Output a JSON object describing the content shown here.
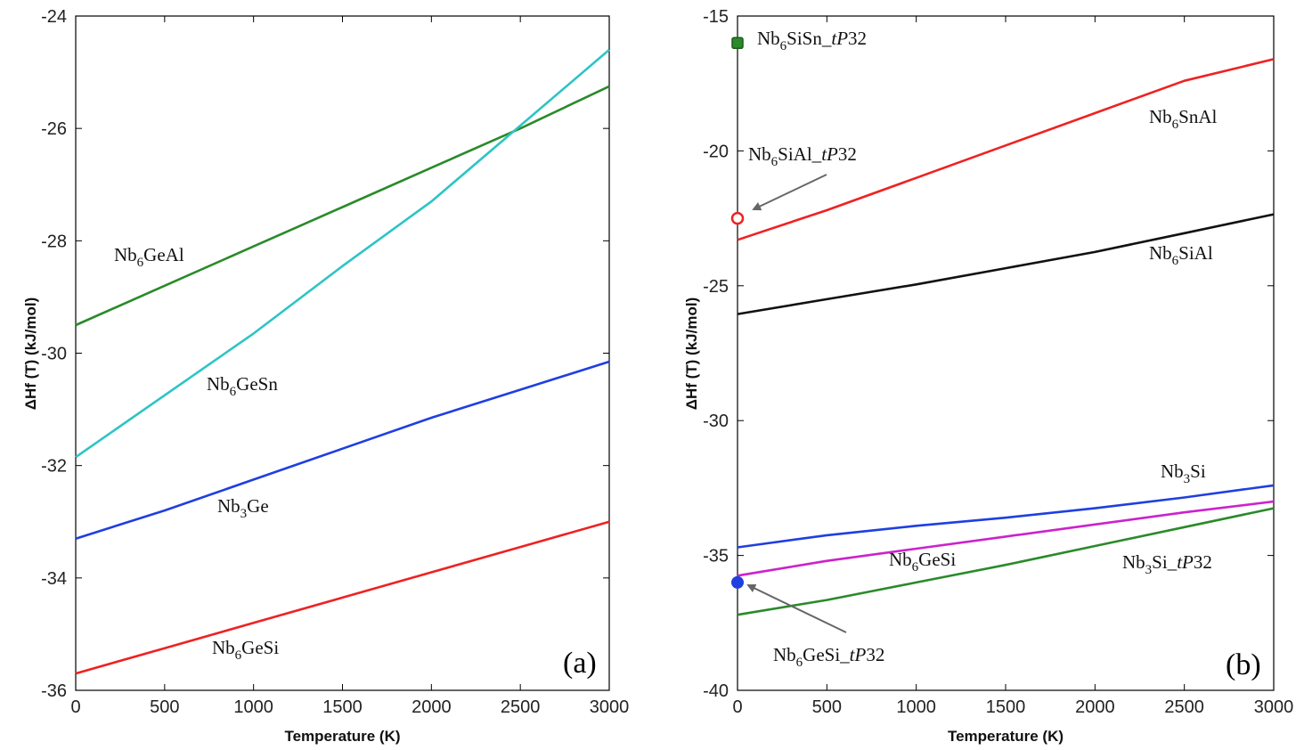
{
  "chart_data": [
    {
      "panel_label": "(a)",
      "type": "line",
      "xlabel": "Temperature  (K)",
      "ylabel": "ΔHf (T) (kJ/mol)",
      "xlim": [
        0,
        3000
      ],
      "ylim": [
        -36,
        -24
      ],
      "xticks": [
        0,
        500,
        1000,
        1500,
        2000,
        2500,
        3000
      ],
      "yticks": [
        -36,
        -34,
        -32,
        -30,
        -28,
        -26,
        -24
      ],
      "grid": false,
      "legend": "none",
      "series": [
        {
          "name": "Nb6GeAl",
          "label": {
            "base": "Nb",
            "sub": "6",
            "rest": "GeAl",
            "italic": ""
          },
          "color": "#2a8a2a",
          "x": [
            0,
            500,
            1000,
            1500,
            2000,
            2500,
            3000
          ],
          "y": [
            -29.5,
            -28.8,
            -28.1,
            -27.4,
            -26.7,
            -26.0,
            -25.25
          ]
        },
        {
          "name": "Nb6GeSn",
          "label": {
            "base": "Nb",
            "sub": "6",
            "rest": "GeSn",
            "italic": ""
          },
          "color": "#2ec4c4",
          "x": [
            0,
            500,
            1000,
            1500,
            2000,
            2500,
            3000
          ],
          "y": [
            -31.85,
            -30.75,
            -29.65,
            -28.45,
            -27.3,
            -25.95,
            -24.6
          ]
        },
        {
          "name": "Nb3Ge",
          "label": {
            "base": "Nb",
            "sub": "3",
            "rest": "Ge",
            "italic": ""
          },
          "color": "#1f3fe0",
          "x": [
            0,
            500,
            1000,
            1500,
            2000,
            2500,
            3000
          ],
          "y": [
            -33.3,
            -32.8,
            -32.25,
            -31.7,
            -31.15,
            -30.65,
            -30.15
          ]
        },
        {
          "name": "Nb6GeSi",
          "label": {
            "base": "Nb",
            "sub": "6",
            "rest": "GeSi",
            "italic": ""
          },
          "color": "#ee2222",
          "x": [
            0,
            500,
            1000,
            1500,
            2000,
            2500,
            3000
          ],
          "y": [
            -35.7,
            -35.25,
            -34.8,
            -34.35,
            -33.9,
            -33.45,
            -33.0
          ]
        }
      ]
    },
    {
      "panel_label": "(b)",
      "type": "line",
      "xlabel": "Temperature  (K)",
      "ylabel": "ΔHf (T) (kJ/mol)",
      "xlim": [
        0,
        3000
      ],
      "ylim": [
        -40,
        -15
      ],
      "xticks": [
        0,
        500,
        1000,
        1500,
        2000,
        2500,
        3000
      ],
      "yticks": [
        -40,
        -35,
        -30,
        -25,
        -20,
        -15
      ],
      "grid": false,
      "legend": "none",
      "series": [
        {
          "name": "Nb6SnAl",
          "label": {
            "base": "Nb",
            "sub": "6",
            "rest": "SnAl",
            "italic": ""
          },
          "color": "#ee2222",
          "x": [
            0,
            500,
            1000,
            1500,
            2000,
            2500,
            3000
          ],
          "y": [
            -23.3,
            -22.2,
            -21.0,
            -19.8,
            -18.6,
            -17.4,
            -16.6
          ]
        },
        {
          "name": "Nb6SiAl",
          "label": {
            "base": "Nb",
            "sub": "6",
            "rest": "SiAl",
            "italic": ""
          },
          "color": "#111111",
          "x": [
            0,
            500,
            1000,
            1500,
            2000,
            2500,
            3000
          ],
          "y": [
            -26.05,
            -25.5,
            -24.95,
            -24.35,
            -23.75,
            -23.05,
            -22.35
          ]
        },
        {
          "name": "Nb3Si",
          "label": {
            "base": "Nb",
            "sub": "3",
            "rest": "Si",
            "italic": ""
          },
          "color": "#1f3fe0",
          "x": [
            0,
            500,
            1000,
            1500,
            2000,
            2500,
            3000
          ],
          "y": [
            -34.7,
            -34.25,
            -33.9,
            -33.6,
            -33.25,
            -32.85,
            -32.4
          ]
        },
        {
          "name": "Nb6GeSi",
          "label": {
            "base": "Nb",
            "sub": "6",
            "rest": "GeSi",
            "italic": ""
          },
          "color": "#cc22cc",
          "x": [
            0,
            500,
            1000,
            1500,
            2000,
            2500,
            3000
          ],
          "y": [
            -35.75,
            -35.2,
            -34.75,
            -34.3,
            -33.85,
            -33.4,
            -33.0
          ]
        },
        {
          "name": "Nb3Si_tP32",
          "label": {
            "base": "Nb",
            "sub": "3",
            "rest": "Si_",
            "italic": "tP",
            "tail": "32"
          },
          "color": "#2a8a2a",
          "x": [
            0,
            500,
            1000,
            1500,
            2000,
            2500,
            3000
          ],
          "y": [
            -37.2,
            -36.65,
            -36.0,
            -35.35,
            -34.65,
            -33.95,
            -33.25
          ]
        }
      ],
      "points": [
        {
          "name": "Nb6SiSn_tP32",
          "label": {
            "base": "Nb",
            "sub": "6",
            "rest": "SiSn_",
            "italic": "tP",
            "tail": "32"
          },
          "x": 0,
          "y": -16.0,
          "color": "#2a8a2a",
          "marker": "filled-square"
        },
        {
          "name": "Nb6SiAl_tP32",
          "label": {
            "base": "Nb",
            "sub": "6",
            "rest": "SiAl_",
            "italic": "tP",
            "tail": "32"
          },
          "x": 0,
          "y": -22.5,
          "color": "#ee2222",
          "marker": "open-circle"
        },
        {
          "name": "Nb6GeSi_tP32",
          "label": {
            "base": "Nb",
            "sub": "6",
            "rest": "GeSi_",
            "italic": "tP",
            "tail": "32"
          },
          "x": 0,
          "y": -36.0,
          "color": "#1f3fe0",
          "marker": "filled-circle"
        }
      ]
    }
  ]
}
